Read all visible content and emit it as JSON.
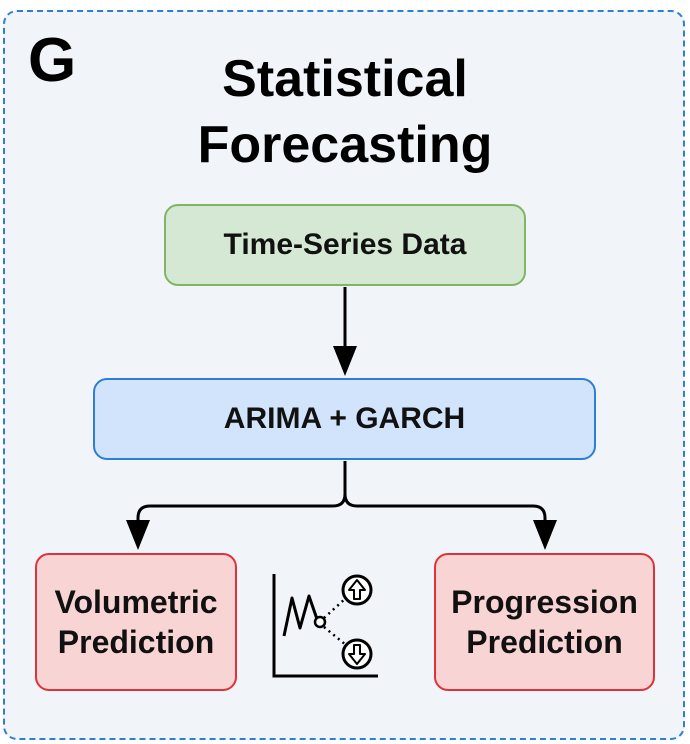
{
  "panel": {
    "letter": "G",
    "title_line1": "Statistical",
    "title_line2": "Forecasting"
  },
  "nodes": {
    "data": "Time-Series Data",
    "model": "ARIMA + GARCH",
    "volumetric_line1": "Volumetric",
    "volumetric_line2": "Prediction",
    "progression_line1": "Progression",
    "progression_line2": "Prediction"
  },
  "colors": {
    "panel_border": "#2d7fd6",
    "panel_fill": "#f1f5fa",
    "data_fill": "#d5e8d4",
    "data_border": "#82b366",
    "model_fill": "#d2e4fb",
    "model_border": "#2d7fd6",
    "output_fill": "#f9d4d4",
    "output_border": "#e0323a"
  },
  "icons": {
    "forecast": "forecast-chart-icon",
    "up": "arrow-up-circle-icon",
    "down": "arrow-down-circle-icon"
  }
}
